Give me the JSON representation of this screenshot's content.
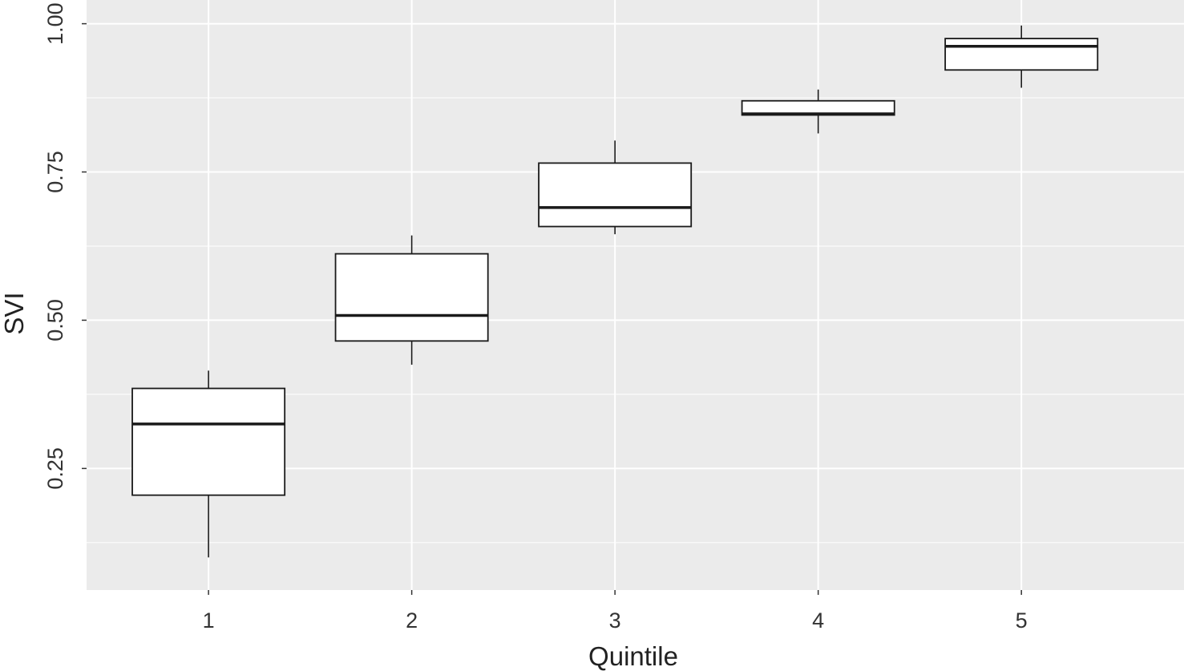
{
  "chart_data": {
    "type": "box",
    "title": "",
    "xlabel": "Quintile",
    "ylabel": "SVI",
    "categories": [
      "1",
      "2",
      "3",
      "4",
      "5"
    ],
    "ylim": [
      0.045,
      1.04
    ],
    "yticks": [
      0.25,
      0.5,
      0.75,
      1.0
    ],
    "ytick_labels": [
      "0.25",
      "0.50",
      "0.75",
      "1.00"
    ],
    "boxes": [
      {
        "category": "1",
        "whisker_low": 0.1,
        "q1": 0.205,
        "median": 0.325,
        "q3": 0.385,
        "whisker_high": 0.415
      },
      {
        "category": "2",
        "whisker_low": 0.425,
        "q1": 0.465,
        "median": 0.508,
        "q3": 0.612,
        "whisker_high": 0.643
      },
      {
        "category": "3",
        "whisker_low": 0.645,
        "q1": 0.658,
        "median": 0.69,
        "q3": 0.765,
        "whisker_high": 0.803
      },
      {
        "category": "4",
        "whisker_low": 0.815,
        "q1": 0.846,
        "median": 0.848,
        "q3": 0.87,
        "whisker_high": 0.889
      },
      {
        "category": "5",
        "whisker_low": 0.892,
        "q1": 0.922,
        "median": 0.962,
        "q3": 0.975,
        "whisker_high": 0.997
      }
    ],
    "grid": true,
    "legend": "none",
    "colors": {
      "panel": "#ebebeb",
      "grid": "#ffffff",
      "box_fill": "#ffffff",
      "box_line": "#1a1a1a"
    }
  }
}
